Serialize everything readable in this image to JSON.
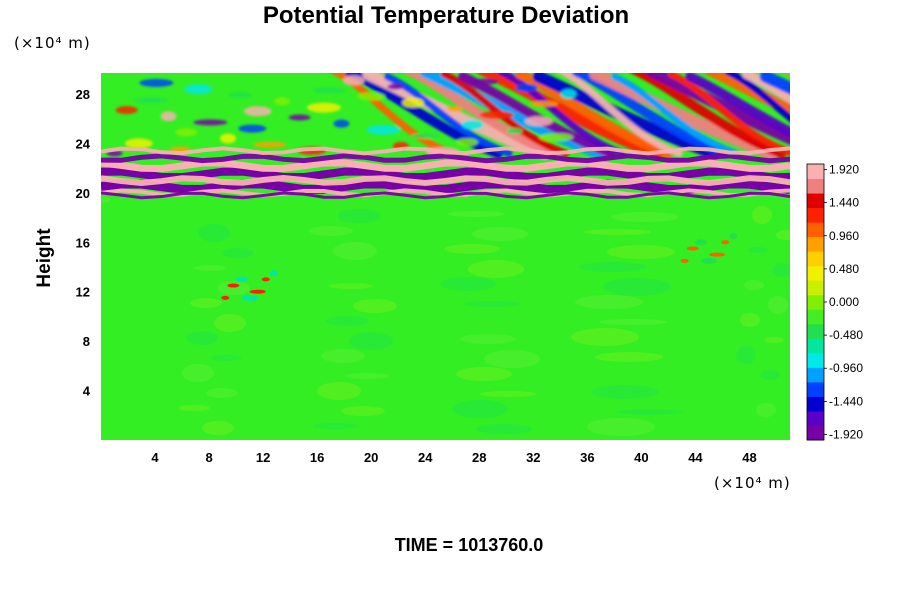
{
  "chart_data": {
    "type": "heatmap",
    "title": "Potential Temperature Deviation",
    "ylabel": "Height",
    "y_unit": "(×10⁴ m)",
    "x_unit": "(×10⁴ m)",
    "x_range": [
      0,
      51
    ],
    "y_range": [
      0,
      29.7
    ],
    "x_ticks": [
      4,
      8,
      12,
      16,
      20,
      24,
      28,
      32,
      36,
      40,
      44,
      48
    ],
    "y_ticks": [
      4,
      8,
      12,
      16,
      20,
      24,
      28
    ],
    "time_label": "TIME = 1013760.0",
    "colorbar": {
      "min": -2.0,
      "max": 2.0,
      "tick_values": [
        1.92,
        1.44,
        0.96,
        0.48,
        0.0,
        -0.48,
        -0.96,
        -1.44,
        -1.92
      ],
      "tick_labels": [
        "1.920",
        "1.440",
        "0.960",
        "0.480",
        "0.000",
        "-0.480",
        "-0.960",
        "-1.440",
        "-1.920"
      ],
      "colors": [
        "#7800a8",
        "#5a00c8",
        "#0000d0",
        "#0040ff",
        "#00a0ff",
        "#00e8e8",
        "#00e8a0",
        "#20e050",
        "#44ee22",
        "#80f000",
        "#c8f000",
        "#f0f000",
        "#ffd000",
        "#ffa000",
        "#ff6000",
        "#ff2000",
        "#e00000",
        "#f08080",
        "#f8b0b0"
      ]
    },
    "field_features": [
      {
        "name": "shear-layer-cold-band",
        "y": 21.5,
        "value": -1.92
      },
      {
        "name": "shear-layer-warm-band",
        "y": 22.2,
        "value": 1.92
      },
      {
        "name": "shear-layer-cold-band-lower",
        "y": 20.5,
        "value": -1.92
      },
      {
        "name": "upper-gravity-waves",
        "y_min": 23,
        "y_max": 29.7,
        "amplitude": 1.92
      },
      {
        "name": "convective-cell-left",
        "x": 11,
        "y": 12.5,
        "value": 1.2
      },
      {
        "name": "convective-cell-right",
        "x": 45,
        "y": 15.5,
        "value": 1.0
      },
      {
        "name": "background",
        "value": 0.0
      }
    ]
  }
}
